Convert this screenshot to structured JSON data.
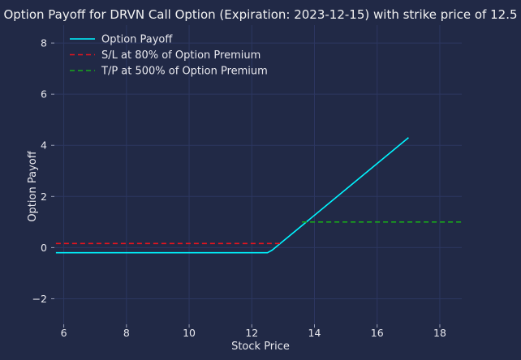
{
  "chart_data": {
    "type": "line",
    "title": "Option Payoff for DRVN Call Option (Expiration: 2023-12-15) with strike price of 12.5",
    "xlabel": "Stock Price",
    "ylabel": "Option Payoff",
    "xlim": [
      5.7,
      18.7
    ],
    "ylim": [
      -3.0,
      8.7
    ],
    "xticks": [
      6,
      8,
      10,
      12,
      14,
      16,
      18
    ],
    "yticks": [
      -2,
      0,
      2,
      4,
      6,
      8
    ],
    "grid": true,
    "legend_position": "top-left",
    "series": [
      {
        "name": "Option Payoff",
        "style": "solid",
        "color": "#00f5ff",
        "x": [
          5.75,
          12.5,
          12.65,
          17.0
        ],
        "y": [
          -0.2,
          -0.2,
          -0.1,
          4.3
        ]
      },
      {
        "name": "S/L at 80% of Option Premium",
        "style": "dashed",
        "color": "#e8141e",
        "x": [
          5.75,
          12.9
        ],
        "y": [
          0.16,
          0.16
        ]
      },
      {
        "name": "T/P at 500% of Option Premium",
        "style": "dashed",
        "color": "#18a81a",
        "x": [
          13.6,
          18.7
        ],
        "y": [
          1.0,
          1.0
        ]
      }
    ]
  }
}
